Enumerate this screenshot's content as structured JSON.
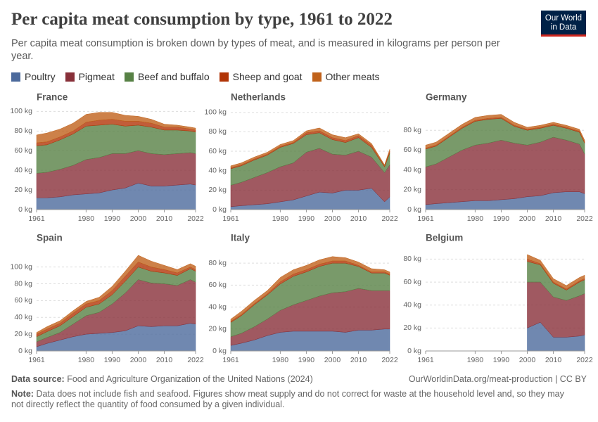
{
  "header": {
    "title": "Per capita meat consumption by type, 1961 to 2022",
    "subtitle": "Per capita meat consumption is broken down by types of meat, and is measured in kilograms per person per year.",
    "logo": [
      "Our World",
      "in Data"
    ]
  },
  "legend": [
    {
      "name": "Poultry",
      "color": "#4c6a9c"
    },
    {
      "name": "Pigmeat",
      "color": "#883039"
    },
    {
      "name": "Beef and buffalo",
      "color": "#578145"
    },
    {
      "name": "Sheep and goat",
      "color": "#b13507"
    },
    {
      "name": "Other meats",
      "color": "#c0621b"
    }
  ],
  "footer": {
    "source_label": "Data source:",
    "source": "Food and Agriculture Organization of the United Nations (2024)",
    "url": "OurWorldinData.org/meat-production | CC BY",
    "note_label": "Note:",
    "note": "Data does not include fish and seafood. Figures show meat supply and do not correct for waste at the household level and, so they may not directly reflect the quantity of food consumed by a given individual."
  },
  "chart_data": [
    {
      "type": "area",
      "stacked": true,
      "title": "France",
      "x": [
        1961,
        1965,
        1970,
        1975,
        1980,
        1985,
        1990,
        1995,
        2000,
        2005,
        2010,
        2015,
        2020,
        2022
      ],
      "series": [
        {
          "values": [
            12,
            12,
            13,
            15,
            16,
            17,
            20,
            22,
            27,
            24,
            24,
            25,
            26,
            25
          ]
        },
        {
          "values": [
            25,
            26,
            28,
            30,
            35,
            36,
            37,
            35,
            33,
            33,
            32,
            32,
            32,
            32
          ]
        },
        {
          "values": [
            28,
            28,
            30,
            32,
            34,
            33,
            30,
            28,
            26,
            27,
            25,
            24,
            22,
            22
          ]
        },
        {
          "values": [
            3,
            3,
            3,
            3,
            4,
            5,
            5,
            5,
            4,
            4,
            3,
            3,
            2,
            2
          ]
        },
        {
          "values": [
            8,
            9,
            8,
            8,
            8,
            8,
            7,
            6,
            5,
            4,
            3,
            2,
            2,
            2
          ]
        }
      ],
      "xlim": [
        1961,
        2022
      ],
      "xticks": [
        1961,
        1980,
        1990,
        2000,
        2010,
        2022
      ],
      "ylim": [
        0,
        101
      ],
      "yticks": [
        {
          "value": 0,
          "label": "0 kg"
        },
        {
          "value": 20,
          "label": "20 kg"
        },
        {
          "value": 40,
          "label": "40 kg"
        },
        {
          "value": 60,
          "label": "60 kg"
        },
        {
          "value": 80,
          "label": "80 kg"
        },
        {
          "value": 100,
          "label": "100 kg"
        }
      ],
      "grid": true
    },
    {
      "type": "area",
      "stacked": true,
      "title": "Netherlands",
      "x": [
        1961,
        1965,
        1970,
        1975,
        1980,
        1985,
        1990,
        1995,
        2000,
        2005,
        2010,
        2015,
        2020,
        2022
      ],
      "series": [
        {
          "values": [
            3,
            4,
            5,
            6,
            8,
            10,
            14,
            18,
            17,
            20,
            20,
            22,
            8,
            13
          ]
        },
        {
          "values": [
            22,
            24,
            28,
            32,
            36,
            38,
            45,
            45,
            40,
            36,
            40,
            32,
            30,
            33
          ]
        },
        {
          "values": [
            17,
            17,
            18,
            18,
            20,
            20,
            18,
            16,
            15,
            13,
            14,
            10,
            6,
            12
          ]
        },
        {
          "values": [
            1,
            1,
            1,
            1,
            1,
            1,
            2,
            2,
            2,
            2,
            2,
            2,
            1,
            2
          ]
        },
        {
          "values": [
            2,
            2,
            2,
            2,
            2,
            2,
            2,
            3,
            3,
            3,
            2,
            2,
            1,
            2
          ]
        }
      ],
      "xlim": [
        1961,
        2022
      ],
      "xticks": [
        1961,
        1980,
        1990,
        2000,
        2010,
        2022
      ],
      "ylim": [
        0,
        102
      ],
      "yticks": [
        {
          "value": 0,
          "label": "0 kg"
        },
        {
          "value": 20,
          "label": "20 kg"
        },
        {
          "value": 40,
          "label": "40 kg"
        },
        {
          "value": 60,
          "label": "60 kg"
        },
        {
          "value": 80,
          "label": "80 kg"
        },
        {
          "value": 100,
          "label": "100 kg"
        }
      ],
      "grid": true
    },
    {
      "type": "area",
      "stacked": true,
      "title": "Germany",
      "x": [
        1961,
        1965,
        1970,
        1975,
        1980,
        1985,
        1990,
        1995,
        2000,
        2005,
        2010,
        2015,
        2020,
        2022
      ],
      "series": [
        {
          "values": [
            5,
            6,
            7,
            8,
            9,
            9,
            10,
            11,
            13,
            14,
            17,
            18,
            18,
            16
          ]
        },
        {
          "values": [
            38,
            40,
            46,
            52,
            56,
            58,
            60,
            56,
            52,
            54,
            56,
            52,
            48,
            40
          ]
        },
        {
          "values": [
            18,
            18,
            20,
            22,
            24,
            24,
            22,
            17,
            15,
            14,
            12,
            12,
            12,
            11
          ]
        },
        {
          "values": [
            1,
            1,
            1,
            1,
            1,
            1,
            1,
            1,
            1,
            1,
            1,
            1,
            1,
            1
          ]
        },
        {
          "values": [
            3,
            3,
            3,
            3,
            3,
            3,
            3,
            3,
            2,
            2,
            2,
            2,
            2,
            2
          ]
        }
      ],
      "xlim": [
        1961,
        2022
      ],
      "xticks": [
        1961,
        1980,
        1990,
        2000,
        2010,
        2022
      ],
      "ylim": [
        0,
        100
      ],
      "yticks": [
        {
          "value": 0,
          "label": "0 kg"
        },
        {
          "value": 20,
          "label": "20 kg"
        },
        {
          "value": 40,
          "label": "40 kg"
        },
        {
          "value": 60,
          "label": "60 kg"
        },
        {
          "value": 80,
          "label": "80 kg"
        }
      ],
      "grid": true
    },
    {
      "type": "area",
      "stacked": true,
      "title": "Spain",
      "x": [
        1961,
        1965,
        1970,
        1975,
        1980,
        1985,
        1990,
        1995,
        2000,
        2005,
        2010,
        2015,
        2020,
        2022
      ],
      "series": [
        {
          "values": [
            5,
            9,
            13,
            17,
            20,
            21,
            22,
            24,
            30,
            29,
            30,
            30,
            33,
            32
          ]
        },
        {
          "values": [
            6,
            7,
            9,
            15,
            22,
            25,
            34,
            45,
            55,
            52,
            50,
            48,
            52,
            50
          ]
        },
        {
          "values": [
            6,
            7,
            8,
            9,
            10,
            10,
            11,
            14,
            15,
            14,
            13,
            12,
            13,
            13
          ]
        },
        {
          "values": [
            3,
            3,
            3,
            4,
            4,
            4,
            5,
            6,
            6,
            5,
            4,
            3,
            2,
            2
          ]
        },
        {
          "values": [
            2,
            3,
            3,
            3,
            3,
            4,
            5,
            6,
            8,
            7,
            5,
            4,
            4,
            4
          ]
        }
      ],
      "xlim": [
        1961,
        2022
      ],
      "xticks": [
        1961,
        1980,
        1990,
        2000,
        2010,
        2022
      ],
      "ylim": [
        0,
        119
      ],
      "yticks": [
        {
          "value": 0,
          "label": "0 kg"
        },
        {
          "value": 20,
          "label": "20 kg"
        },
        {
          "value": 40,
          "label": "40 kg"
        },
        {
          "value": 60,
          "label": "60 kg"
        },
        {
          "value": 80,
          "label": "80 kg"
        },
        {
          "value": 100,
          "label": "100 kg"
        }
      ],
      "grid": true
    },
    {
      "type": "area",
      "stacked": true,
      "title": "Italy",
      "x": [
        1961,
        1965,
        1970,
        1975,
        1980,
        1985,
        1990,
        1995,
        2000,
        2005,
        2010,
        2015,
        2020,
        2022
      ],
      "series": [
        {
          "values": [
            5,
            7,
            10,
            14,
            17,
            18,
            18,
            18,
            18,
            17,
            19,
            19,
            20,
            20
          ]
        },
        {
          "values": [
            8,
            9,
            12,
            15,
            20,
            24,
            28,
            32,
            35,
            37,
            38,
            36,
            35,
            35
          ]
        },
        {
          "values": [
            13,
            16,
            20,
            22,
            24,
            26,
            26,
            27,
            27,
            26,
            20,
            16,
            16,
            14
          ]
        },
        {
          "values": [
            1,
            1,
            1,
            1,
            2,
            2,
            2,
            2,
            2,
            2,
            1,
            1,
            1,
            1
          ]
        },
        {
          "values": [
            2,
            3,
            3,
            3,
            4,
            4,
            4,
            4,
            4,
            3,
            3,
            3,
            2,
            2
          ]
        }
      ],
      "xlim": [
        1961,
        2022
      ],
      "xticks": [
        1961,
        1980,
        1990,
        2000,
        2010,
        2022
      ],
      "ylim": [
        0,
        91
      ],
      "yticks": [
        {
          "value": 0,
          "label": "0 kg"
        },
        {
          "value": 20,
          "label": "20 kg"
        },
        {
          "value": 40,
          "label": "40 kg"
        },
        {
          "value": 60,
          "label": "60 kg"
        },
        {
          "value": 80,
          "label": "80 kg"
        }
      ],
      "grid": true
    },
    {
      "type": "area",
      "stacked": true,
      "title": "Belgium",
      "x": [
        1961,
        1965,
        1970,
        1975,
        1980,
        1985,
        1990,
        1995,
        2000,
        2005,
        2010,
        2015,
        2020,
        2022
      ],
      "series": [
        {
          "values": [
            null,
            null,
            null,
            null,
            null,
            null,
            null,
            null,
            20,
            25,
            12,
            12,
            13,
            14
          ]
        },
        {
          "values": [
            null,
            null,
            null,
            null,
            null,
            null,
            null,
            null,
            40,
            35,
            35,
            32,
            35,
            36
          ]
        },
        {
          "values": [
            null,
            null,
            null,
            null,
            null,
            null,
            null,
            null,
            18,
            15,
            12,
            9,
            12,
            12
          ]
        },
        {
          "values": [
            null,
            null,
            null,
            null,
            null,
            null,
            null,
            null,
            2,
            1,
            1,
            1,
            1,
            1
          ]
        },
        {
          "values": [
            null,
            null,
            null,
            null,
            null,
            null,
            null,
            null,
            4,
            3,
            3,
            3,
            3,
            3
          ]
        }
      ],
      "xlim": [
        1961,
        2022
      ],
      "xticks": [
        1961,
        1980,
        1990,
        2000,
        2010,
        2022
      ],
      "ylim": [
        0,
        87
      ],
      "yticks": [
        {
          "value": 0,
          "label": "0 kg"
        },
        {
          "value": 20,
          "label": "20 kg"
        },
        {
          "value": 40,
          "label": "40 kg"
        },
        {
          "value": 60,
          "label": "60 kg"
        },
        {
          "value": 80,
          "label": "80 kg"
        }
      ],
      "grid": true
    }
  ]
}
